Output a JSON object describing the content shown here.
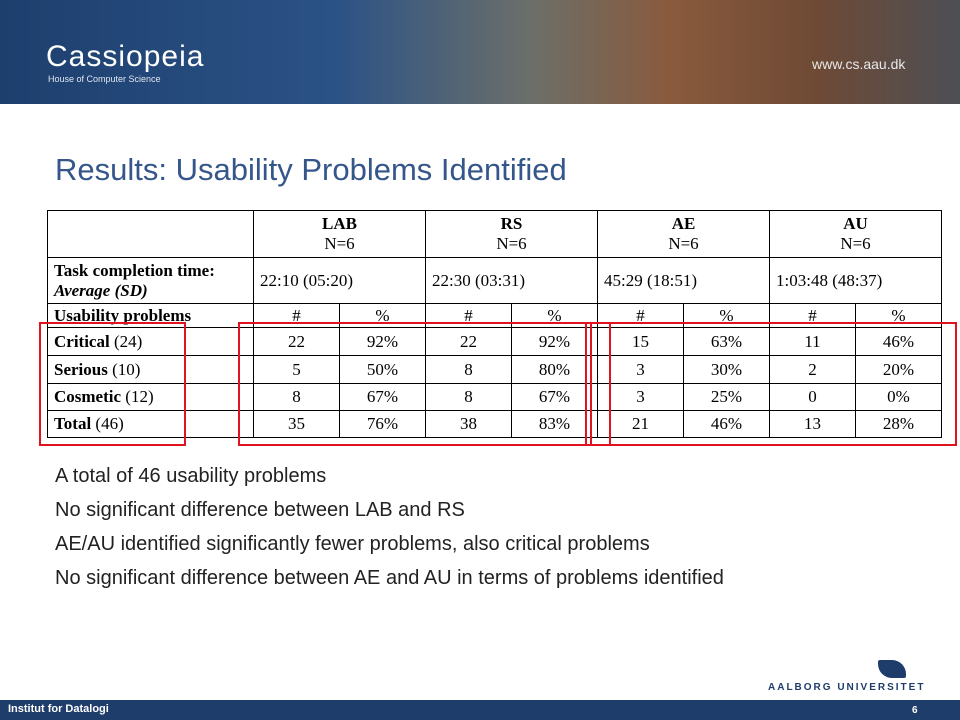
{
  "header": {
    "logo": "Cassiopeia",
    "logo_subtitle": "House of Computer Science",
    "url": "www.cs.aau.dk"
  },
  "title": "Results: Usability Problems Identified",
  "table": {
    "groups": [
      {
        "name": "LAB",
        "n": "N=6"
      },
      {
        "name": "RS",
        "n": "N=6"
      },
      {
        "name": "AE",
        "n": "N=6"
      },
      {
        "name": "AU",
        "n": "N=6"
      }
    ],
    "task_row": {
      "label": "Task completion time:",
      "sublabel": "Average (SD)",
      "values": [
        "22:10 (05:20)",
        "22:30 (03:31)",
        "45:29 (18:51)",
        "1:03:48 (48:37)"
      ]
    },
    "problems_row": {
      "label": "Usability problems",
      "columns": [
        "#",
        "%",
        "#",
        "%",
        "#",
        "%",
        "#",
        "%"
      ]
    },
    "rows": [
      {
        "name": "Critical",
        "count": "(24)",
        "values": [
          "22",
          "92%",
          "22",
          "92%",
          "15",
          "63%",
          "11",
          "46%"
        ]
      },
      {
        "name": "Serious",
        "count": "(10)",
        "values": [
          "5",
          "50%",
          "8",
          "80%",
          "3",
          "30%",
          "2",
          "20%"
        ]
      },
      {
        "name": "Cosmetic",
        "count": "(12)",
        "values": [
          "8",
          "67%",
          "8",
          "67%",
          "3",
          "25%",
          "0",
          "0%"
        ]
      },
      {
        "name": "Total",
        "count": "(46)",
        "values": [
          "35",
          "76%",
          "38",
          "83%",
          "21",
          "46%",
          "13",
          "28%"
        ]
      }
    ]
  },
  "bullets": [
    "A total of 46 usability problems",
    "No significant difference between LAB and RS",
    "AE/AU identified significantly fewer problems, also critical problems",
    "No significant difference between AE and AU in terms of problems identified"
  ],
  "footer": {
    "institute": "Institut for Datalogi",
    "page": "6",
    "university": "AALBORG UNIVERSITET"
  }
}
